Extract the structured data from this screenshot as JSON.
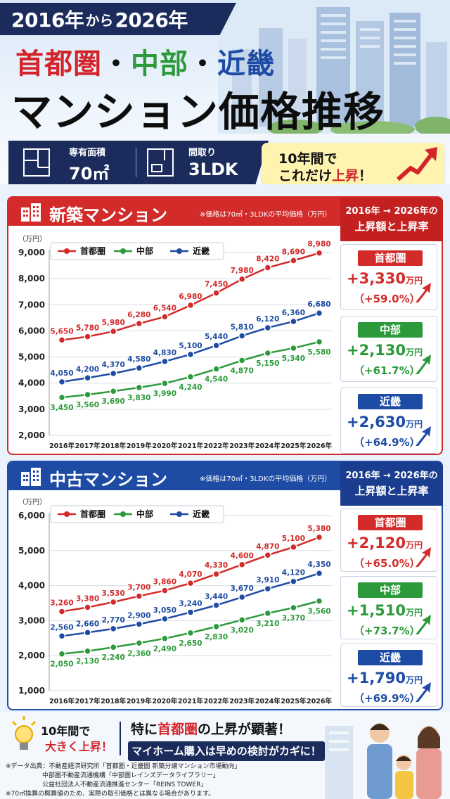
{
  "header": {
    "year_from": "2016年",
    "connector": "から",
    "year_to": "2026年",
    "region1": "首都圏",
    "region2": "中部",
    "region3": "近畿",
    "dot": "・",
    "main_title": "マンション価格推移",
    "spec1_label": "専有面積",
    "spec1_value": "70㎡",
    "spec2_label": "間取り",
    "spec2_value": "3LDK",
    "callout_line1": "10年間で",
    "callout_line2_pre": "これだけ",
    "callout_line2_em": "上昇",
    "callout_line2_post": "！"
  },
  "panel_new": {
    "title": "新築マンション",
    "note": "※価格は70㎡・3LDKの平均価格（万円）",
    "right_head1": "2016年 → 2026年の",
    "right_head2": "上昇額と上昇率",
    "cards": [
      {
        "region": "首都圏",
        "amount": "+3,330",
        "unit": "万円",
        "rate": "（+59.0%）",
        "color": "#d32a2a"
      },
      {
        "region": "中部",
        "amount": "+2,130",
        "unit": "万円",
        "rate": "（+61.7%）",
        "color": "#2c9a3a"
      },
      {
        "region": "近畿",
        "amount": "+2,630",
        "unit": "万円",
        "rate": "（+64.9%）",
        "color": "#1e4ca5"
      }
    ]
  },
  "panel_used": {
    "title": "中古マンション",
    "note": "※価格は70㎡・3LDKの平均価格（万円）",
    "right_head1": "2016年 → 2026年の",
    "right_head2": "上昇額と上昇率",
    "cards": [
      {
        "region": "首都圏",
        "amount": "+2,120",
        "unit": "万円",
        "rate": "（+65.0%）",
        "color": "#d32a2a"
      },
      {
        "region": "中部",
        "amount": "+1,510",
        "unit": "万円",
        "rate": "（+73.7%）",
        "color": "#2c9a3a"
      },
      {
        "region": "近畿",
        "amount": "+1,790",
        "unit": "万円",
        "rate": "（+69.9%）",
        "color": "#1e4ca5"
      }
    ]
  },
  "chart_data": [
    {
      "type": "line",
      "title": "新築マンション",
      "ylabel": "（万円）",
      "categories": [
        "2016年",
        "2017年",
        "2018年",
        "2019年",
        "2020年",
        "2021年",
        "2022年",
        "2023年",
        "2024年",
        "2025年",
        "2026年"
      ],
      "ylim": [
        2000,
        9000
      ],
      "yticks": [
        "2,000",
        "3,000",
        "4,000",
        "5,000",
        "6,000",
        "7,000",
        "8,000",
        "9,000"
      ],
      "legend_position": "top-left",
      "grid": true,
      "series": [
        {
          "name": "首都圏",
          "color": "#d32a2a",
          "values": [
            5650,
            5780,
            5980,
            6280,
            6540,
            6980,
            7450,
            7980,
            8420,
            8690,
            8980
          ],
          "labels": [
            "5,650",
            "5,780",
            "5,980",
            "6,280",
            "6,540",
            "6,980",
            "7,450",
            "7,980",
            "8,420",
            "8,690",
            "8,980"
          ]
        },
        {
          "name": "中部",
          "color": "#2c9a3a",
          "values": [
            3450,
            3560,
            3690,
            3830,
            3990,
            4240,
            4540,
            4870,
            5150,
            5340,
            5580
          ],
          "labels": [
            "3,450",
            "3,560",
            "3,690",
            "3,830",
            "3,990",
            "4,240",
            "4,540",
            "4,870",
            "5,150",
            "5,340",
            "5,580"
          ]
        },
        {
          "name": "近畿",
          "color": "#1e4ca5",
          "values": [
            4050,
            4200,
            4370,
            4580,
            4830,
            5100,
            5440,
            5810,
            6120,
            6360,
            6680
          ],
          "labels": [
            "4,050",
            "4,200",
            "4,370",
            "4,580",
            "4,830",
            "5,100",
            "5,440",
            "5,810",
            "6,120",
            "6,360",
            "6,680"
          ]
        }
      ]
    },
    {
      "type": "line",
      "title": "中古マンション",
      "ylabel": "（万円）",
      "categories": [
        "2016年",
        "2017年",
        "2018年",
        "2019年",
        "2020年",
        "2021年",
        "2022年",
        "2023年",
        "2024年",
        "2025年",
        "2026年"
      ],
      "ylim": [
        1000,
        6000
      ],
      "yticks": [
        "1,000",
        "2,000",
        "3,000",
        "4,000",
        "5,000",
        "6,000"
      ],
      "legend_position": "top-left",
      "grid": true,
      "series": [
        {
          "name": "首都圏",
          "color": "#d32a2a",
          "values": [
            3260,
            3380,
            3530,
            3700,
            3860,
            4070,
            4330,
            4600,
            4870,
            5100,
            5380
          ],
          "labels": [
            "3,260",
            "3,380",
            "3,530",
            "3,700",
            "3,860",
            "4,070",
            "4,330",
            "4,600",
            "4,870",
            "5,100",
            "5,380"
          ]
        },
        {
          "name": "中部",
          "color": "#2c9a3a",
          "values": [
            2050,
            2130,
            2240,
            2360,
            2490,
            2650,
            2830,
            3020,
            3210,
            3370,
            3560
          ],
          "labels": [
            "2,050",
            "2,130",
            "2,240",
            "2,360",
            "2,490",
            "2,650",
            "2,830",
            "3,020",
            "3,210",
            "3,370",
            "3,560"
          ]
        },
        {
          "name": "近畿",
          "color": "#1e4ca5",
          "values": [
            2560,
            2660,
            2770,
            2900,
            3050,
            3240,
            3440,
            3670,
            3910,
            4120,
            4350
          ],
          "labels": [
            "2,560",
            "2,660",
            "2,770",
            "2,900",
            "3,050",
            "3,240",
            "3,440",
            "3,670",
            "3,910",
            "4,120",
            "4,350"
          ]
        }
      ]
    }
  ],
  "footer": {
    "left1": "10年間で",
    "left2": "大きく上昇！",
    "main_pre": "特に",
    "main_em": "首都圏",
    "main_post": "の上昇が顕著！",
    "sub": "マイホーム購入は早めの検討がカギに！",
    "source1": "※データ出典：不動産経済研究所「首都圏・近畿圏 新築分譲マンション市場動向」",
    "source2": "中部圏不動産流通機構「中部圏レインズデータライブラリー」",
    "source3": "公益社団法人不動産流通推進センター「REINS TOWER」",
    "source4": "※70㎡換算の概算値のため、実際の取引価格とは異なる場合があります。"
  }
}
